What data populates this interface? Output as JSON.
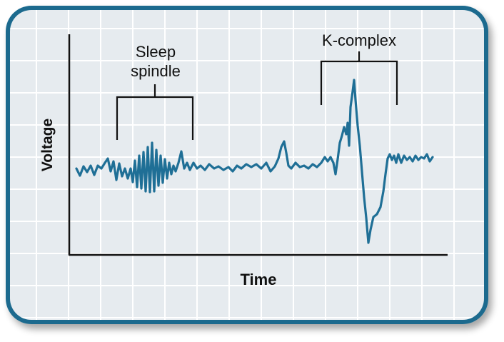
{
  "labels": {
    "sleep_spindle_line1": "Sleep",
    "sleep_spindle_line2": "spindle",
    "k_complex": "K-complex",
    "y_axis": "Voltage",
    "x_axis": "Time"
  },
  "colors": {
    "frame_border": "#1a6a8e",
    "panel_fill": "#e6ebef",
    "grid": "#ffffff",
    "axes": "#111111",
    "trace": "#1f6f96",
    "brackets": "#111111"
  }
}
